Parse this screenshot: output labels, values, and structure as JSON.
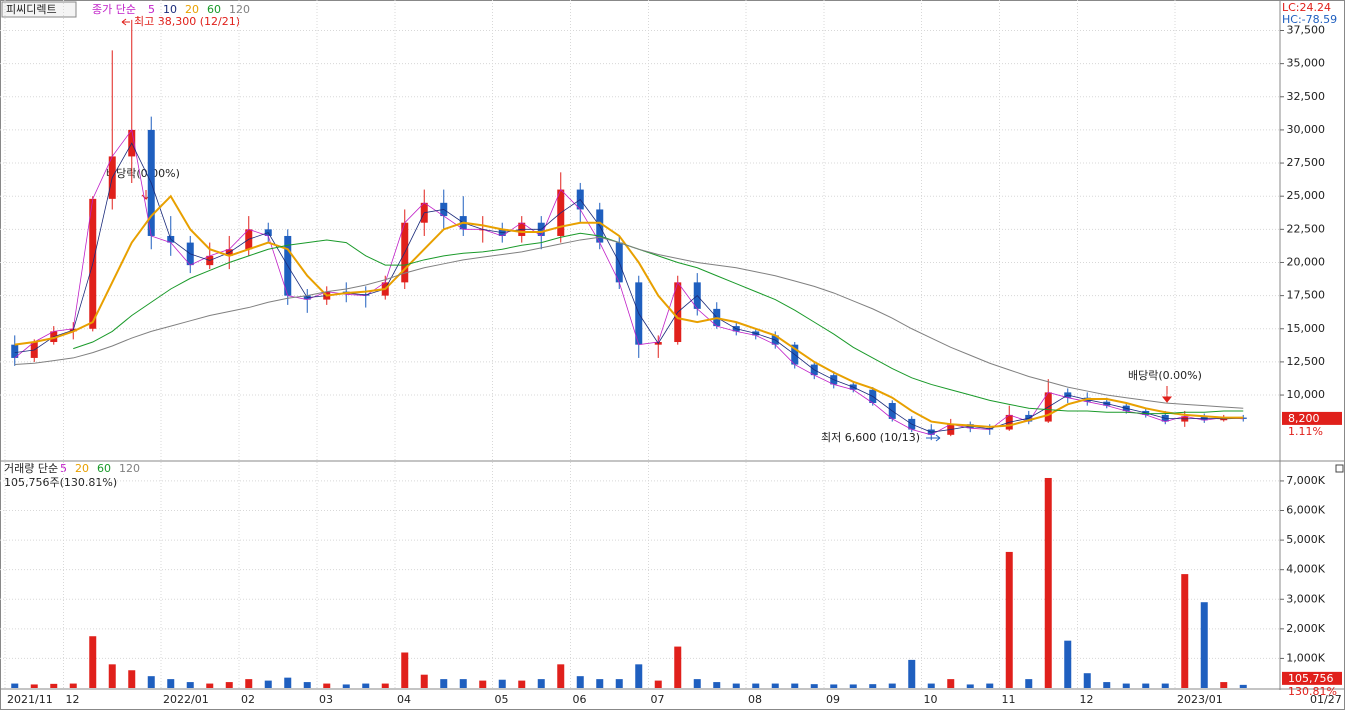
{
  "chart_data": [
    {
      "type": "candlestick",
      "stock_name": "피씨디렉트",
      "ma_label": "종가 단순",
      "categories": [
        "2021/11",
        null,
        null,
        "12",
        null,
        null,
        null,
        null,
        "2022/01",
        null,
        null,
        null,
        "02",
        null,
        null,
        null,
        "03",
        null,
        null,
        null,
        "04",
        null,
        null,
        null,
        null,
        "05",
        null,
        null,
        null,
        "06",
        null,
        null,
        null,
        "07",
        null,
        null,
        null,
        null,
        "08",
        null,
        null,
        null,
        "09",
        null,
        null,
        null,
        null,
        "10",
        null,
        null,
        null,
        "11",
        null,
        null,
        null,
        "12",
        null,
        null,
        null,
        null,
        "2023/01",
        null,
        null,
        null
      ],
      "last_date": "01/27",
      "open": [
        13800,
        12800,
        14000,
        14800,
        15000,
        24800,
        28000,
        30000,
        22000,
        21500,
        19800,
        20500,
        21000,
        22500,
        22000,
        17500,
        17200,
        17800,
        17600,
        17500,
        18500,
        23000,
        24500,
        23500,
        22500,
        22500,
        22000,
        23000,
        22000,
        25500,
        24000,
        21500,
        18500,
        13800,
        14000,
        18500,
        16500,
        15200,
        14800,
        14500,
        13800,
        12300,
        11500,
        10800,
        10400,
        9400,
        8200,
        7400,
        7000,
        7800,
        7500,
        7400,
        8500,
        8000,
        10200,
        9800,
        9500,
        9200,
        8800,
        8500,
        8000,
        8400,
        8100,
        8300
      ],
      "high": [
        14500,
        14200,
        15200,
        15500,
        25000,
        36000,
        38300,
        31000,
        23500,
        22000,
        21500,
        22000,
        23500,
        23000,
        22500,
        18000,
        18200,
        18500,
        18200,
        19000,
        24000,
        25500,
        25500,
        25000,
        23500,
        23000,
        23500,
        23500,
        26800,
        26000,
        24500,
        22000,
        19000,
        14500,
        19000,
        19200,
        17000,
        15500,
        15000,
        14800,
        14000,
        12500,
        11800,
        11000,
        10600,
        9600,
        8400,
        7800,
        8200,
        8000,
        7800,
        9200,
        8800,
        11200,
        10500,
        10200,
        9800,
        9400,
        9000,
        8800,
        8800,
        8600,
        8500,
        8500
      ],
      "low": [
        12200,
        12500,
        13800,
        14200,
        14800,
        24000,
        26000,
        21000,
        20500,
        19200,
        19500,
        19500,
        20500,
        21500,
        16800,
        16200,
        16800,
        17000,
        16600,
        17200,
        18000,
        22000,
        22500,
        22000,
        21500,
        21500,
        21500,
        21000,
        21500,
        23000,
        21000,
        18000,
        12800,
        12800,
        13800,
        16000,
        15000,
        14500,
        14200,
        13500,
        12000,
        11200,
        10500,
        10200,
        9200,
        8000,
        7200,
        6600,
        6900,
        7200,
        7000,
        7300,
        7800,
        7900,
        9400,
        9200,
        9000,
        8600,
        8300,
        7800,
        7600,
        7900,
        8000,
        8000
      ],
      "close": [
        12800,
        14000,
        14800,
        15000,
        24800,
        28000,
        30000,
        22000,
        21500,
        19800,
        20500,
        21000,
        22500,
        22000,
        17500,
        17200,
        17800,
        17600,
        17500,
        18500,
        23000,
        24500,
        23500,
        22500,
        22500,
        22000,
        23000,
        22000,
        25500,
        24000,
        21500,
        18500,
        13800,
        14000,
        18500,
        16500,
        15200,
        14800,
        14500,
        13800,
        12300,
        11500,
        10800,
        10400,
        9400,
        8200,
        7400,
        7000,
        7800,
        7500,
        7400,
        8500,
        8000,
        10200,
        9800,
        9500,
        9200,
        8800,
        8500,
        8000,
        8400,
        8100,
        8300,
        8200
      ],
      "up_color": "#e0201b",
      "down_color": "#1f5fbf",
      "series": [
        {
          "name": "5",
          "color": "#c020c8",
          "width": 0.8,
          "values": [
            12800,
            14000,
            14800,
            15000,
            24800,
            28000,
            30000,
            22000,
            21500,
            19800,
            20500,
            21000,
            22500,
            22000,
            17500,
            17200,
            17800,
            17600,
            17500,
            18500,
            23000,
            24500,
            23500,
            22500,
            22500,
            22000,
            23000,
            22000,
            25500,
            24000,
            21500,
            18500,
            13800,
            14000,
            18500,
            16500,
            15200,
            14800,
            14500,
            13800,
            12300,
            11500,
            10800,
            10400,
            9400,
            8200,
            7400,
            7000,
            7800,
            7500,
            7400,
            8500,
            8000,
            10200,
            9800,
            9500,
            9200,
            8800,
            8500,
            8000,
            8400,
            8100,
            8300,
            8200
          ]
        },
        {
          "name": "10",
          "color": "#1a2a7a",
          "width": 0.8,
          "values": [
            13200,
            13400,
            14400,
            14900,
            19900,
            26400,
            29000,
            26000,
            21750,
            20650,
            20150,
            20750,
            21750,
            22250,
            19750,
            17350,
            17500,
            17700,
            17550,
            18000,
            20750,
            23750,
            24000,
            23000,
            22500,
            22250,
            22500,
            22500,
            23750,
            24750,
            22750,
            20000,
            16150,
            13900,
            16250,
            17500,
            15850,
            15000,
            14650,
            14150,
            13050,
            11900,
            11150,
            10600,
            9900,
            8800,
            7800,
            7200,
            7400,
            7650,
            7450,
            7950,
            8250,
            9100,
            10000,
            9650,
            9350,
            9000,
            8650,
            8250,
            8200,
            8250,
            8200,
            8250
          ]
        },
        {
          "name": "20",
          "color": "#e8a000",
          "width": 2,
          "values": [
            13800,
            14000,
            14300,
            14800,
            15500,
            18500,
            21500,
            23500,
            25000,
            22500,
            21000,
            20500,
            21000,
            21500,
            21000,
            19000,
            17500,
            17700,
            17800,
            18000,
            19500,
            21000,
            22500,
            23000,
            22800,
            22500,
            22300,
            22300,
            22700,
            23000,
            23000,
            22000,
            20000,
            17500,
            15800,
            15500,
            15800,
            15500,
            15000,
            14500,
            13500,
            12500,
            11700,
            11000,
            10500,
            9800,
            8800,
            8000,
            7800,
            7700,
            7600,
            7700,
            8100,
            8500,
            9300,
            9700,
            9700,
            9400,
            9000,
            8700,
            8500,
            8400,
            8300,
            8300
          ]
        },
        {
          "name": "60",
          "color": "#1a9a2a",
          "width": 1,
          "values": [
            null,
            null,
            null,
            13500,
            14000,
            14800,
            16000,
            17000,
            18000,
            18800,
            19400,
            20000,
            20500,
            21000,
            21300,
            21500,
            21700,
            21500,
            20500,
            19800,
            19800,
            20200,
            20500,
            20700,
            20800,
            21000,
            21300,
            21500,
            21900,
            22200,
            22000,
            21500,
            21000,
            20500,
            20000,
            19600,
            19000,
            18400,
            17800,
            17200,
            16400,
            15500,
            14600,
            13600,
            12800,
            12000,
            11300,
            10800,
            10400,
            10000,
            9600,
            9300,
            9000,
            8900,
            8800,
            8800,
            8700,
            8700,
            8600,
            8600,
            8700,
            8700,
            8800,
            8800
          ]
        },
        {
          "name": "120",
          "color": "#808080",
          "width": 1,
          "values": [
            12300,
            12400,
            12600,
            12800,
            13200,
            13700,
            14300,
            14800,
            15200,
            15600,
            16000,
            16300,
            16600,
            17000,
            17300,
            17500,
            17800,
            18000,
            18300,
            18700,
            19200,
            19600,
            19900,
            20200,
            20400,
            20600,
            20800,
            21100,
            21400,
            21700,
            21900,
            21500,
            21000,
            20600,
            20300,
            20000,
            19800,
            19600,
            19300,
            19000,
            18600,
            18200,
            17700,
            17100,
            16500,
            15800,
            15000,
            14300,
            13600,
            13000,
            12400,
            11900,
            11400,
            11000,
            10600,
            10300,
            10000,
            9800,
            9600,
            9400,
            9300,
            9200,
            9100,
            9000
          ]
        }
      ],
      "ylim": [
        5100,
        39800
      ],
      "yticks": [
        {
          "value": 10000,
          "label": "10,000"
        },
        {
          "value": 12500,
          "label": "12,500"
        },
        {
          "value": 15000,
          "label": "15,000"
        },
        {
          "value": 17500,
          "label": "17,500"
        },
        {
          "value": 20000,
          "label": "20,000"
        },
        {
          "value": 22500,
          "label": "22,500"
        },
        {
          "value": 25000,
          "label": "25,000"
        },
        {
          "value": 27500,
          "label": "27,500"
        },
        {
          "value": 30000,
          "label": "30,000"
        },
        {
          "value": 32500,
          "label": "32,500"
        },
        {
          "value": 35000,
          "label": "35,000"
        },
        {
          "value": 37500,
          "label": "37,500"
        }
      ],
      "grid": true,
      "annotations": {
        "high": "최고 38,300 (12/21)",
        "low": "최저 6,600 (10/13)",
        "dividend_1": "배당락(0.00%)",
        "dividend_2": "배당락(0.00%)"
      },
      "lc": "LC:24.24",
      "hc": "HC:-78.59",
      "price_tag": "8,200",
      "change_tag": "1.11%"
    },
    {
      "type": "bar",
      "title": "거래량 단순",
      "legend": [
        {
          "name": "5",
          "color": "#c020c8"
        },
        {
          "name": "20",
          "color": "#e8a000"
        },
        {
          "name": "60",
          "color": "#1a9a2a"
        },
        {
          "name": "120",
          "color": "#808080"
        }
      ],
      "info": "105,756주(130.81%)",
      "values": [
        150,
        120,
        140,
        150,
        1750,
        800,
        600,
        400,
        300,
        200,
        150,
        200,
        300,
        250,
        350,
        200,
        150,
        120,
        150,
        150,
        1200,
        450,
        300,
        300,
        250,
        280,
        250,
        300,
        800,
        400,
        300,
        300,
        800,
        250,
        1400,
        300,
        200,
        150,
        150,
        150,
        150,
        130,
        120,
        120,
        130,
        150,
        950,
        150,
        300,
        120,
        150,
        4600,
        300,
        7100,
        1600,
        500,
        200,
        150,
        150,
        150,
        3850,
        2900,
        200,
        106
      ],
      "ylim": [
        0,
        7640
      ],
      "yticks": [
        {
          "value": 1000,
          "label": "1,000K"
        },
        {
          "value": 2000,
          "label": "2,000K"
        },
        {
          "value": 3000,
          "label": "3,000K"
        },
        {
          "value": 4000,
          "label": "4,000K"
        },
        {
          "value": 5000,
          "label": "5,000K"
        },
        {
          "value": 6000,
          "label": "6,000K"
        },
        {
          "value": 7000,
          "label": "7,000K"
        }
      ],
      "grid": true,
      "volume_tag": "105,756",
      "ratio_tag": "130.81%"
    }
  ]
}
